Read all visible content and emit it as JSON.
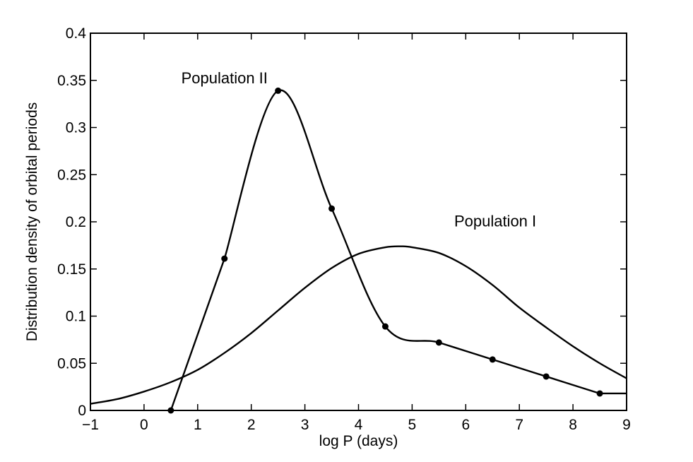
{
  "chart_data": {
    "type": "line",
    "title": "",
    "xlabel": "log P (days)",
    "ylabel": "Distribution density of orbital periods",
    "xlim": [
      -1,
      9
    ],
    "ylim": [
      0,
      0.4
    ],
    "x_ticks": [
      -1,
      0,
      1,
      2,
      3,
      4,
      5,
      6,
      7,
      8,
      9
    ],
    "x_tick_labels": [
      "−1",
      "0",
      "1",
      "2",
      "3",
      "4",
      "5",
      "6",
      "7",
      "8",
      "9"
    ],
    "y_ticks": [
      0,
      0.05,
      0.1,
      0.15,
      0.2,
      0.25,
      0.3,
      0.35,
      0.4
    ],
    "y_tick_labels": [
      "0",
      "0.05",
      "0.1",
      "0.15",
      "0.2",
      "0.25",
      "0.3",
      "0.35",
      "0.4"
    ],
    "grid": false,
    "legend": "none",
    "color": "#000000",
    "series": [
      {
        "name": "Population II",
        "markers": true,
        "x": [
          0.5,
          1.5,
          2.5,
          3.5,
          4.5,
          5.5,
          6.5,
          7.5,
          8.5
        ],
        "values": [
          0.0,
          0.161,
          0.339,
          0.214,
          0.089,
          0.072,
          0.054,
          0.036,
          0.018
        ],
        "tail": {
          "x": [
            8.5,
            9.0
          ],
          "values": [
            0.018,
            0.018
          ]
        }
      },
      {
        "name": "Population I",
        "markers": false,
        "x": [
          -1,
          -0.5,
          0,
          0.5,
          1,
          1.5,
          2,
          2.5,
          3,
          3.5,
          4,
          4.5,
          4.8,
          5,
          5.5,
          6,
          6.5,
          7,
          7.5,
          8,
          8.5,
          9
        ],
        "values": [
          0.007,
          0.012,
          0.02,
          0.03,
          0.043,
          0.061,
          0.082,
          0.106,
          0.13,
          0.151,
          0.166,
          0.173,
          0.174,
          0.173,
          0.167,
          0.153,
          0.133,
          0.109,
          0.088,
          0.068,
          0.05,
          0.034
        ]
      }
    ],
    "annotations": [
      {
        "text": "Population II",
        "x": 1.5,
        "y": 0.347
      },
      {
        "text": "Population I",
        "x": 6.55,
        "y": 0.195
      }
    ]
  }
}
